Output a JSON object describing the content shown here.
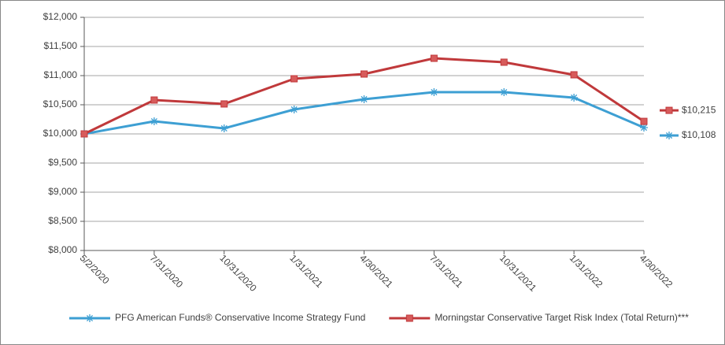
{
  "chart_data": {
    "type": "line",
    "categories": [
      "5/2/2020",
      "7/31/2020",
      "10/31/2020",
      "1/31/2021",
      "4/30/2021",
      "7/31/2021",
      "10/31/2021",
      "1/31/2022",
      "4/30/2022"
    ],
    "series": [
      {
        "name": "PFG American Funds® Conservative Income Strategy Fund",
        "color": "#3d9fd3",
        "marker": "asterisk",
        "values": [
          10000,
          10216,
          10095,
          10419,
          10595,
          10716,
          10716,
          10622,
          10108
        ],
        "value_labels": [
          null,
          null,
          null,
          null,
          null,
          null,
          null,
          null,
          "$10,108"
        ]
      },
      {
        "name": "Morningstar Conservative Target Risk Index (Total Return)***",
        "color": "#c0393b",
        "marker": "square",
        "values": [
          10000,
          10581,
          10514,
          10946,
          11027,
          11297,
          11230,
          11014,
          10215
        ],
        "value_labels": [
          null,
          null,
          null,
          null,
          null,
          null,
          null,
          null,
          "$10,215"
        ]
      }
    ],
    "ylim": [
      8000,
      12000
    ],
    "yticks": [
      {
        "value": 8000,
        "label": "$8,000"
      },
      {
        "value": 8500,
        "label": "$8,500"
      },
      {
        "value": 9000,
        "label": "$9,000"
      },
      {
        "value": 9500,
        "label": "$9,500"
      },
      {
        "value": 10000,
        "label": "$10,000"
      },
      {
        "value": 10500,
        "label": "$10,500"
      },
      {
        "value": 11000,
        "label": "$11,000"
      },
      {
        "value": 11500,
        "label": "$11,500"
      },
      {
        "value": 12000,
        "label": "$12,000"
      }
    ],
    "grid": true,
    "legend": "bottom"
  }
}
